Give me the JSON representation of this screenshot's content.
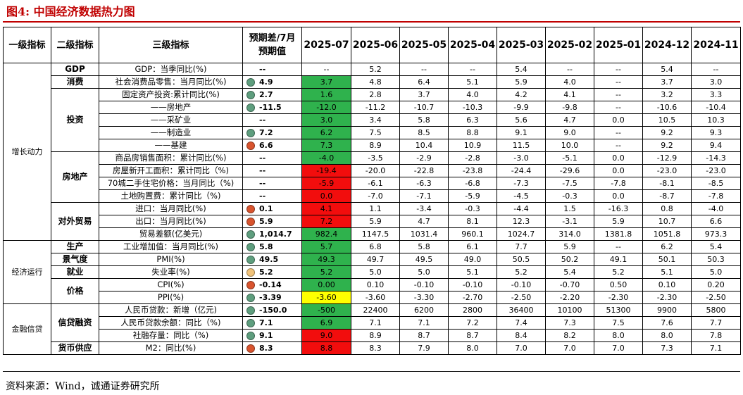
{
  "figure": {
    "title": "图4:    中国经济数据热力图",
    "source": "资料来源：Wind，诚通证券研究所"
  },
  "colors": {
    "title_red": "#c00000",
    "heat_green": "#2fb24d",
    "heat_red": "#f20d0d",
    "heat_yellow": "#ffff00",
    "dot_green": "#5e9e7e",
    "dot_red": "#d9542e",
    "dot_yellow": "#f0c27a"
  },
  "chart_data": {
    "type": "table",
    "columns": [
      "一级指标",
      "二级指标",
      "三级指标",
      "预期差/7月预期值",
      "2025-07",
      "2025-06",
      "2025-05",
      "2025-04",
      "2025-03",
      "2025-02",
      "2025-01",
      "2024-12",
      "2024-11"
    ],
    "level1_groups": [
      {
        "label": "增长动力"
      },
      {
        "label": "经济运行"
      },
      {
        "label": "金融信贷"
      }
    ],
    "level2_groups": [
      {
        "label": "GDP"
      },
      {
        "label": "消费"
      },
      {
        "label": "投资"
      },
      {
        "label": "房地产"
      },
      {
        "label": "对外贸易"
      },
      {
        "label": "生产"
      },
      {
        "label": "景气度"
      },
      {
        "label": "就业"
      },
      {
        "label": "价格"
      },
      {
        "label": "信贷融资"
      },
      {
        "label": "货币供应"
      }
    ],
    "rows": [
      {
        "indicator": "GDP：当季同比(%)",
        "dot": "none",
        "dev": "--",
        "current": "--",
        "heat": "none",
        "history": [
          "5.2",
          "--",
          "--",
          "5.4",
          "--",
          "--",
          "5.4",
          "--"
        ]
      },
      {
        "indicator": "社会消费品零售：当月同比(%)",
        "dot": "green",
        "dev": "4.9",
        "current": "3.7",
        "heat": "green",
        "history": [
          "4.8",
          "6.4",
          "5.1",
          "5.9",
          "4.0",
          "--",
          "3.7",
          "3.0"
        ]
      },
      {
        "indicator": "固定资产投资:累计同比(%)",
        "dot": "green",
        "dev": "2.7",
        "current": "1.6",
        "heat": "green",
        "history": [
          "2.8",
          "3.7",
          "4.0",
          "4.2",
          "4.1",
          "--",
          "3.2",
          "3.3"
        ]
      },
      {
        "indicator": "——房地产",
        "dot": "green",
        "dev": "-11.5",
        "current": "-12.0",
        "heat": "green",
        "history": [
          "-11.2",
          "-10.7",
          "-10.3",
          "-9.9",
          "-9.8",
          "--",
          "-10.6",
          "-10.4"
        ]
      },
      {
        "indicator": "——采矿业",
        "dot": "none",
        "dev": "--",
        "current": "3.0",
        "heat": "green",
        "history": [
          "3.4",
          "5.8",
          "6.3",
          "5.6",
          "4.7",
          "0.0",
          "10.5",
          "10.3"
        ]
      },
      {
        "indicator": "——制造业",
        "dot": "green",
        "dev": "7.2",
        "current": "6.2",
        "heat": "green",
        "history": [
          "7.5",
          "8.5",
          "8.8",
          "9.1",
          "9.0",
          "--",
          "9.2",
          "9.3"
        ]
      },
      {
        "indicator": "——基建",
        "dot": "red",
        "dev": "6.6",
        "current": "7.3",
        "heat": "green",
        "history": [
          "8.9",
          "10.4",
          "10.9",
          "11.5",
          "10.0",
          "--",
          "9.2",
          "9.4"
        ]
      },
      {
        "indicator": "商品房销售面积：累计同比(%)",
        "dot": "none",
        "dev": "--",
        "current": "-4.0",
        "heat": "green",
        "history": [
          "-3.5",
          "-2.9",
          "-2.8",
          "-3.0",
          "-5.1",
          "0.0",
          "-12.9",
          "-14.3"
        ]
      },
      {
        "indicator": "房屋新开工面积：累计同比（%)",
        "dot": "none",
        "dev": "--",
        "current": "-19.4",
        "heat": "red",
        "history": [
          "-20.0",
          "-22.8",
          "-23.8",
          "-24.4",
          "-29.6",
          "0.0",
          "-23.0",
          "-23.0"
        ]
      },
      {
        "indicator": "70城二手住宅价格：当月同比（%)",
        "dot": "none",
        "dev": "--",
        "current": "-5.9",
        "heat": "red",
        "history": [
          "-6.1",
          "-6.3",
          "-6.8",
          "-7.3",
          "-7.5",
          "-7.8",
          "-8.1",
          "-8.5"
        ]
      },
      {
        "indicator": "土地购置费：累计同比（%)",
        "dot": "none",
        "dev": "--",
        "current": "0.0",
        "heat": "red",
        "history": [
          "-7.0",
          "-7.1",
          "-5.9",
          "-4.5",
          "-0.3",
          "0.0",
          "-8.7",
          "-7.8"
        ]
      },
      {
        "indicator": "进口：当月同比(%)",
        "dot": "red",
        "dev": "0.1",
        "current": "4.1",
        "heat": "red",
        "history": [
          "1.1",
          "-3.4",
          "-0.3",
          "-4.4",
          "1.5",
          "-16.3",
          "0.8",
          "-4.0"
        ]
      },
      {
        "indicator": "出口：当月同比(%)",
        "dot": "red",
        "dev": "5.9",
        "current": "7.2",
        "heat": "red",
        "history": [
          "5.9",
          "4.7",
          "8.1",
          "12.3",
          "-3.1",
          "5.9",
          "10.7",
          "6.6"
        ]
      },
      {
        "indicator": "贸易差额(亿美元)",
        "dot": "green",
        "dev": "1,014.7",
        "current": "982.4",
        "heat": "green",
        "history": [
          "1147.5",
          "1031.4",
          "960.1",
          "1024.7",
          "314.0",
          "1381.8",
          "1051.8",
          "973.3"
        ]
      },
      {
        "indicator": "工业增加值：当月同比(%)",
        "dot": "green",
        "dev": "5.8",
        "current": "5.7",
        "heat": "green",
        "history": [
          "6.8",
          "5.8",
          "6.1",
          "7.7",
          "5.9",
          "--",
          "6.2",
          "5.4"
        ]
      },
      {
        "indicator": "PMI(%)",
        "dot": "green",
        "dev": "49.5",
        "current": "49.3",
        "heat": "green",
        "history": [
          "49.7",
          "49.5",
          "49.0",
          "50.5",
          "50.2",
          "49.1",
          "50.1",
          "50.3"
        ]
      },
      {
        "indicator": "失业率(%)",
        "dot": "yellow",
        "dev": "5.2",
        "current": "5.2",
        "heat": "green",
        "history": [
          "5.0",
          "5.0",
          "5.1",
          "5.2",
          "5.4",
          "5.2",
          "5.1",
          "5.0"
        ]
      },
      {
        "indicator": "CPI(%)",
        "dot": "red",
        "dev": "-0.14",
        "current": "0.00",
        "heat": "green",
        "history": [
          "0.10",
          "-0.10",
          "-0.10",
          "-0.10",
          "-0.70",
          "0.50",
          "0.10",
          "0.20"
        ]
      },
      {
        "indicator": "PPI(%)",
        "dot": "green",
        "dev": "-3.39",
        "current": "-3.60",
        "heat": "yellow",
        "history": [
          "-3.60",
          "-3.30",
          "-2.70",
          "-2.50",
          "-2.20",
          "-2.30",
          "-2.30",
          "-2.50"
        ]
      },
      {
        "indicator": "人民币贷款：新增（亿元)",
        "dot": "green",
        "dev": "-150.0",
        "current": "-500",
        "heat": "green",
        "history": [
          "22400",
          "6200",
          "2800",
          "36400",
          "10100",
          "51300",
          "9900",
          "5800"
        ]
      },
      {
        "indicator": "人民币贷款余额：同比（%)",
        "dot": "green",
        "dev": "7.1",
        "current": "6.9",
        "heat": "green",
        "history": [
          "7.1",
          "7.1",
          "7.2",
          "7.4",
          "7.3",
          "7.5",
          "7.6",
          "7.7"
        ]
      },
      {
        "indicator": "社融存量：同比（%)",
        "dot": "green",
        "dev": "9.1",
        "current": "9.0",
        "heat": "red",
        "history": [
          "8.9",
          "8.7",
          "8.7",
          "8.4",
          "8.2",
          "8.0",
          "8.0",
          "7.8"
        ]
      },
      {
        "indicator": "M2：同比(%)",
        "dot": "red",
        "dev": "8.3",
        "current": "8.8",
        "heat": "red",
        "history": [
          "8.3",
          "7.9",
          "8.0",
          "7.0",
          "7.0",
          "7.0",
          "7.3",
          "7.1"
        ]
      }
    ]
  }
}
